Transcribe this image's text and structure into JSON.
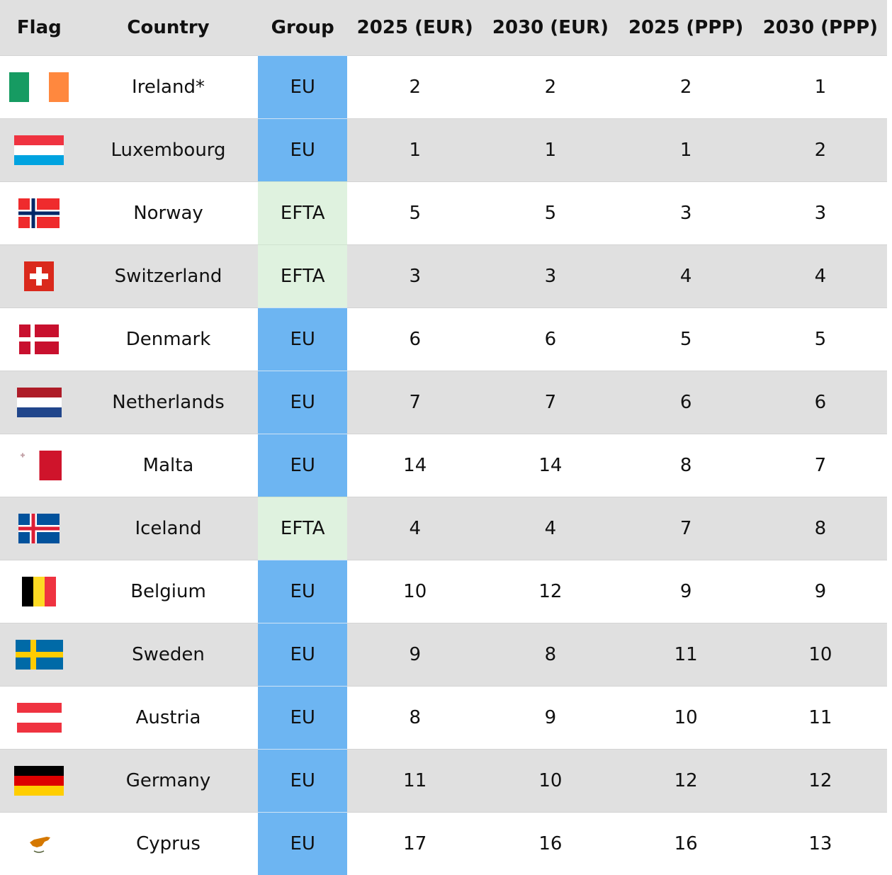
{
  "headers": {
    "flag": "Flag",
    "country": "Country",
    "group": "Group",
    "eur2025": "2025 (EUR)",
    "eur2030": "2030 (EUR)",
    "ppp2025": "2025 (PPP)",
    "ppp2030": "2030 (PPP)"
  },
  "rows": [
    {
      "country": "Ireland*",
      "group": "EU",
      "eur2025": "2",
      "eur2030": "2",
      "ppp2025": "2",
      "ppp2030": "1",
      "flag_icon": "ireland-flag-icon"
    },
    {
      "country": "Luxembourg",
      "group": "EU",
      "eur2025": "1",
      "eur2030": "1",
      "ppp2025": "1",
      "ppp2030": "2",
      "flag_icon": "luxembourg-flag-icon"
    },
    {
      "country": "Norway",
      "group": "EFTA",
      "eur2025": "5",
      "eur2030": "5",
      "ppp2025": "3",
      "ppp2030": "3",
      "flag_icon": "norway-flag-icon"
    },
    {
      "country": "Switzerland",
      "group": "EFTA",
      "eur2025": "3",
      "eur2030": "3",
      "ppp2025": "4",
      "ppp2030": "4",
      "flag_icon": "switzerland-flag-icon"
    },
    {
      "country": "Denmark",
      "group": "EU",
      "eur2025": "6",
      "eur2030": "6",
      "ppp2025": "5",
      "ppp2030": "5",
      "flag_icon": "denmark-flag-icon"
    },
    {
      "country": "Netherlands",
      "group": "EU",
      "eur2025": "7",
      "eur2030": "7",
      "ppp2025": "6",
      "ppp2030": "6",
      "flag_icon": "netherlands-flag-icon"
    },
    {
      "country": "Malta",
      "group": "EU",
      "eur2025": "14",
      "eur2030": "14",
      "ppp2025": "8",
      "ppp2030": "7",
      "flag_icon": "malta-flag-icon"
    },
    {
      "country": "Iceland",
      "group": "EFTA",
      "eur2025": "4",
      "eur2030": "4",
      "ppp2025": "7",
      "ppp2030": "8",
      "flag_icon": "iceland-flag-icon"
    },
    {
      "country": "Belgium",
      "group": "EU",
      "eur2025": "10",
      "eur2030": "12",
      "ppp2025": "9",
      "ppp2030": "9",
      "flag_icon": "belgium-flag-icon"
    },
    {
      "country": "Sweden",
      "group": "EU",
      "eur2025": "9",
      "eur2030": "8",
      "ppp2025": "11",
      "ppp2030": "10",
      "flag_icon": "sweden-flag-icon"
    },
    {
      "country": "Austria",
      "group": "EU",
      "eur2025": "8",
      "eur2030": "9",
      "ppp2025": "10",
      "ppp2030": "11",
      "flag_icon": "austria-flag-icon"
    },
    {
      "country": "Germany",
      "group": "EU",
      "eur2025": "11",
      "eur2030": "10",
      "ppp2025": "12",
      "ppp2030": "12",
      "flag_icon": "germany-flag-icon"
    },
    {
      "country": "Cyprus",
      "group": "EU",
      "eur2025": "17",
      "eur2030": "16",
      "ppp2025": "16",
      "ppp2030": "13",
      "flag_icon": "cyprus-flag-icon"
    }
  ],
  "colors": {
    "header_bg": "#e0e0e0",
    "row_alt_bg": "#e0e0e0",
    "eu_cell": "#6db5f2",
    "efta_cell": "#dff2df"
  }
}
